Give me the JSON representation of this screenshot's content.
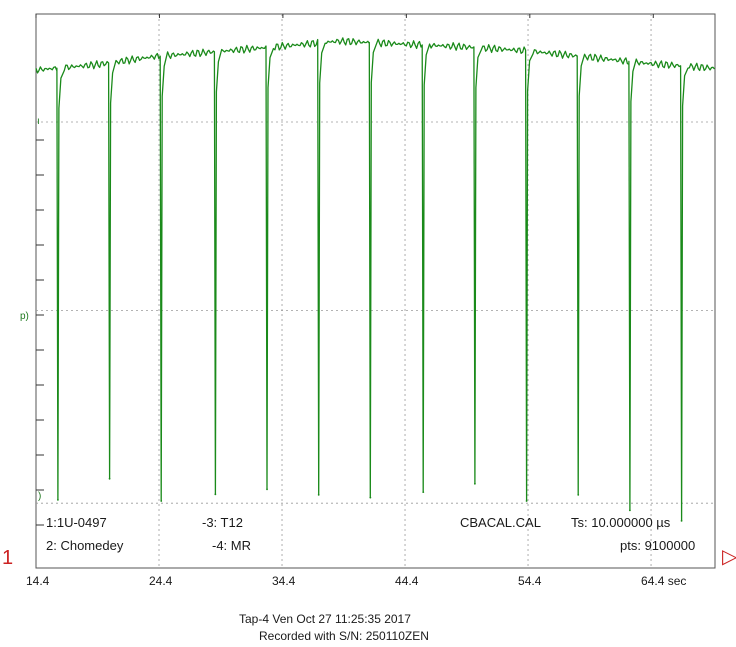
{
  "colors": {
    "trace": "#1a8a1a",
    "grid": "#9a9a9a",
    "marker": "#cc2222",
    "frame": "#555555"
  },
  "annotations": {
    "channel1": "1:1U-0497",
    "channel2": "2: Chomedey",
    "channel3": "-3: T12",
    "channel4": "-4: MR",
    "calfile": "CBACAL.CAL",
    "ts": "Ts: 10.000000 µs",
    "pts": "pts: 9100000"
  },
  "left_labels": {
    "l1": "p)",
    "l2": ")"
  },
  "markers": {
    "left": "1",
    "right": "▷"
  },
  "footer": {
    "line1": "Tap-4   Ven Oct 27 11:25:35 2017",
    "line2": "Recorded with S/N: 250110ZEN"
  },
  "chart_data": {
    "type": "line",
    "x_tick_labels": [
      "14.4",
      "24.4",
      "34.4",
      "44.4",
      "54.4",
      "64.4 sec"
    ],
    "x_ticks": [
      14.4,
      24.4,
      34.4,
      44.4,
      54.4,
      64.4
    ],
    "xlim": [
      14.4,
      69.6
    ],
    "ylim": [
      0,
      1
    ],
    "grid": true,
    "series": [
      {
        "baseline": [
          {
            "x": 14.4,
            "y": 0.899
          },
          {
            "x": 16.0,
            "y": 0.902
          },
          {
            "x": 19.5,
            "y": 0.909
          },
          {
            "x": 24.0,
            "y": 0.923
          },
          {
            "x": 29.0,
            "y": 0.932
          },
          {
            "x": 34.0,
            "y": 0.941
          },
          {
            "x": 39.0,
            "y": 0.951
          },
          {
            "x": 44.0,
            "y": 0.946
          },
          {
            "x": 49.0,
            "y": 0.941
          },
          {
            "x": 54.0,
            "y": 0.934
          },
          {
            "x": 59.0,
            "y": 0.923
          },
          {
            "x": 64.0,
            "y": 0.911
          },
          {
            "x": 69.6,
            "y": 0.902
          }
        ],
        "dips": [
          {
            "x": 16.1,
            "y": 0.123
          },
          {
            "x": 20.3,
            "y": 0.161
          },
          {
            "x": 24.5,
            "y": 0.121
          },
          {
            "x": 28.9,
            "y": 0.133
          },
          {
            "x": 33.1,
            "y": 0.142
          },
          {
            "x": 37.3,
            "y": 0.132
          },
          {
            "x": 41.5,
            "y": 0.127
          },
          {
            "x": 45.8,
            "y": 0.137
          },
          {
            "x": 50.0,
            "y": 0.152
          },
          {
            "x": 54.2,
            "y": 0.121
          },
          {
            "x": 58.4,
            "y": 0.132
          },
          {
            "x": 62.6,
            "y": 0.104
          },
          {
            "x": 66.8,
            "y": 0.085
          }
        ]
      }
    ]
  }
}
